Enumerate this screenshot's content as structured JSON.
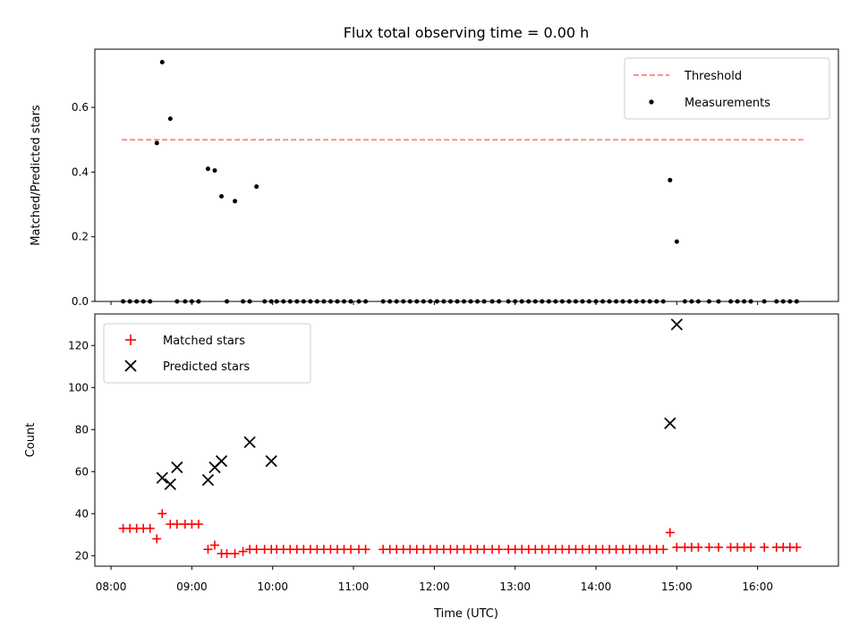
{
  "figure": {
    "title": "Flux total observing time = 0.00 h"
  },
  "chart_data": [
    {
      "type": "scatter",
      "ylabel": "Matched/Predicted stars",
      "xlabel": "",
      "xlim": [
        "07:48",
        "17:00"
      ],
      "ylim": [
        0,
        0.78
      ],
      "yticks": [
        0.0,
        0.2,
        0.4,
        0.6
      ],
      "ytick_labels": [
        "0.0",
        "0.2",
        "0.4",
        "0.6"
      ],
      "legend_position": "top-right",
      "grid": false,
      "series": [
        {
          "name": "Threshold",
          "kind": "line-dashed",
          "color": "#ff8080",
          "x": [
            "08:08",
            "16:34"
          ],
          "y": [
            0.5,
            0.5
          ]
        },
        {
          "name": "Measurements",
          "kind": "point",
          "color": "#000000",
          "x": [
            "08:09",
            "08:14",
            "08:19",
            "08:24",
            "08:29",
            "08:34",
            "08:38",
            "08:44",
            "08:49",
            "08:55",
            "09:00",
            "09:05",
            "09:12",
            "09:17",
            "09:22",
            "09:26",
            "09:32",
            "09:38",
            "09:43",
            "09:48",
            "09:54",
            "09:59",
            "10:03",
            "10:08",
            "10:13",
            "10:18",
            "10:23",
            "10:28",
            "10:33",
            "10:38",
            "10:43",
            "10:48",
            "10:53",
            "10:58",
            "11:04",
            "11:09",
            "11:22",
            "11:27",
            "11:32",
            "11:37",
            "11:42",
            "11:47",
            "11:52",
            "11:57",
            "12:02",
            "12:07",
            "12:12",
            "12:17",
            "12:22",
            "12:27",
            "12:32",
            "12:37",
            "12:43",
            "12:48",
            "12:55",
            "13:00",
            "13:05",
            "13:10",
            "13:15",
            "13:20",
            "13:25",
            "13:30",
            "13:35",
            "13:40",
            "13:45",
            "13:50",
            "13:55",
            "14:00",
            "14:05",
            "14:10",
            "14:15",
            "14:20",
            "14:25",
            "14:30",
            "14:35",
            "14:40",
            "14:45",
            "14:50",
            "14:55",
            "15:00",
            "15:06",
            "15:11",
            "15:16",
            "15:24",
            "15:31",
            "15:40",
            "15:45",
            "15:50",
            "15:55",
            "16:05",
            "16:14",
            "16:19",
            "16:24",
            "16:29"
          ],
          "y": [
            0,
            0,
            0,
            0,
            0,
            0.49,
            0.74,
            0.565,
            0,
            0,
            0,
            0,
            0.41,
            0.405,
            0.325,
            0,
            0.31,
            0,
            0,
            0.355,
            0,
            0,
            0,
            0,
            0,
            0,
            0,
            0,
            0,
            0,
            0,
            0,
            0,
            0,
            0,
            0,
            0,
            0,
            0,
            0,
            0,
            0,
            0,
            0,
            0,
            0,
            0,
            0,
            0,
            0,
            0,
            0,
            0,
            0,
            0,
            0,
            0,
            0,
            0,
            0,
            0,
            0,
            0,
            0,
            0,
            0,
            0,
            0,
            0,
            0,
            0,
            0,
            0,
            0,
            0,
            0,
            0,
            0,
            0.375,
            0.185,
            0,
            0,
            0,
            0,
            0,
            0,
            0,
            0,
            0,
            0,
            0,
            0,
            0,
            0
          ]
        }
      ]
    },
    {
      "type": "scatter",
      "ylabel": "Count",
      "xlabel": "Time (UTC)",
      "xlim": [
        "07:48",
        "17:00"
      ],
      "ylim": [
        15,
        135
      ],
      "yticks": [
        20,
        40,
        60,
        80,
        100,
        120
      ],
      "ytick_labels": [
        "20",
        "40",
        "60",
        "80",
        "100",
        "120"
      ],
      "xticks": [
        "08:00",
        "09:00",
        "10:00",
        "11:00",
        "12:00",
        "13:00",
        "14:00",
        "15:00",
        "16:00"
      ],
      "legend_position": "top-left",
      "grid": false,
      "series": [
        {
          "name": "Matched stars",
          "kind": "plus",
          "color": "#ff0000",
          "x": [
            "08:09",
            "08:14",
            "08:19",
            "08:24",
            "08:29",
            "08:34",
            "08:38",
            "08:44",
            "08:49",
            "08:55",
            "09:00",
            "09:05",
            "09:12",
            "09:17",
            "09:22",
            "09:26",
            "09:32",
            "09:38",
            "09:43",
            "09:48",
            "09:54",
            "09:59",
            "10:03",
            "10:08",
            "10:13",
            "10:18",
            "10:23",
            "10:28",
            "10:33",
            "10:38",
            "10:43",
            "10:48",
            "10:53",
            "10:58",
            "11:04",
            "11:09",
            "11:22",
            "11:27",
            "11:32",
            "11:37",
            "11:42",
            "11:47",
            "11:52",
            "11:57",
            "12:02",
            "12:07",
            "12:12",
            "12:17",
            "12:22",
            "12:27",
            "12:32",
            "12:37",
            "12:43",
            "12:48",
            "12:55",
            "13:00",
            "13:05",
            "13:10",
            "13:15",
            "13:20",
            "13:25",
            "13:30",
            "13:35",
            "13:40",
            "13:45",
            "13:50",
            "13:55",
            "14:00",
            "14:05",
            "14:10",
            "14:15",
            "14:20",
            "14:25",
            "14:30",
            "14:35",
            "14:40",
            "14:45",
            "14:50",
            "14:55",
            "15:00",
            "15:06",
            "15:11",
            "15:16",
            "15:24",
            "15:31",
            "15:40",
            "15:45",
            "15:50",
            "15:55",
            "16:05",
            "16:14",
            "16:19",
            "16:24",
            "16:29"
          ],
          "y": [
            33,
            33,
            33,
            33,
            33,
            28,
            40,
            35,
            35,
            35,
            35,
            35,
            23,
            25,
            21,
            21,
            21,
            22,
            23,
            23,
            23,
            23,
            23,
            23,
            23,
            23,
            23,
            23,
            23,
            23,
            23,
            23,
            23,
            23,
            23,
            23,
            23,
            23,
            23,
            23,
            23,
            23,
            23,
            23,
            23,
            23,
            23,
            23,
            23,
            23,
            23,
            23,
            23,
            23,
            23,
            23,
            23,
            23,
            23,
            23,
            23,
            23,
            23,
            23,
            23,
            23,
            23,
            23,
            23,
            23,
            23,
            23,
            23,
            23,
            23,
            23,
            23,
            23,
            31,
            24,
            24,
            24,
            24,
            24,
            24,
            24,
            24,
            24,
            24,
            24,
            24,
            24,
            24,
            24
          ]
        },
        {
          "name": "Predicted stars",
          "kind": "cross",
          "color": "#000000",
          "x": [
            "08:38",
            "08:44",
            "08:49",
            "09:12",
            "09:17",
            "09:22",
            "09:43",
            "09:59",
            "14:55",
            "15:00"
          ],
          "y": [
            57,
            54,
            62,
            56,
            62,
            65,
            74,
            65,
            83,
            130
          ]
        }
      ]
    }
  ]
}
